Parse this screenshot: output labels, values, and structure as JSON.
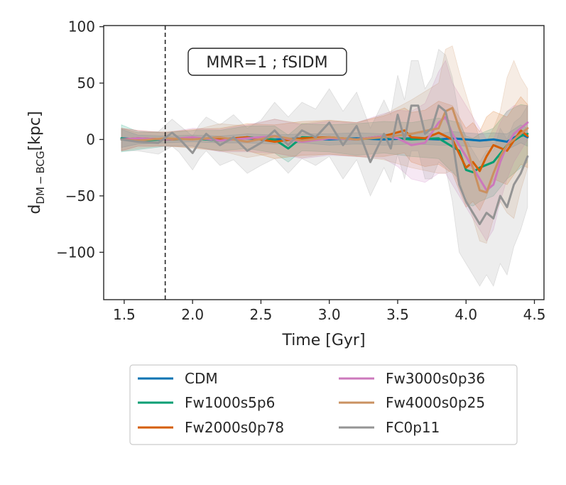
{
  "chart_data": {
    "type": "line",
    "xlabel": "Time [Gyr]",
    "ylabel_main": "d",
    "ylabel_sub": "DM − BCG",
    "ylabel_unit": "[kpc]",
    "annotation": "MMR=1 ; fSIDM",
    "xlim": [
      1.35,
      4.57
    ],
    "ylim": [
      -142,
      101
    ],
    "xticks": [
      1.5,
      2.0,
      2.5,
      3.0,
      3.5,
      4.0,
      4.5
    ],
    "xtick_labels": [
      "1.5",
      "2.0",
      "2.5",
      "3.0",
      "3.5",
      "4.0",
      "4.5"
    ],
    "yticks": [
      100,
      50,
      0,
      -50,
      -100
    ],
    "ytick_labels": [
      "100",
      "50",
      "0",
      "−50",
      "−100"
    ],
    "vline_x": 1.8,
    "legend_placement": "below plot, two columns",
    "series": [
      {
        "name": "CDM",
        "color": "#0173b2",
        "x": [
          1.48,
          1.6,
          1.8,
          2.0,
          2.2,
          2.4,
          2.6,
          2.8,
          3.0,
          3.2,
          3.4,
          3.6,
          3.8,
          3.9,
          4.0,
          4.1,
          4.2,
          4.3,
          4.4,
          4.45
        ],
        "y": [
          1,
          0,
          0,
          1,
          0,
          1,
          0,
          1,
          0,
          1,
          0,
          1,
          0,
          1,
          0,
          -1,
          0,
          -2,
          5,
          2
        ],
        "band": [
          8,
          4,
          3,
          3,
          3,
          4,
          4,
          4,
          5,
          5,
          5,
          5,
          5,
          6,
          6,
          6,
          6,
          7,
          8,
          8
        ]
      },
      {
        "name": "Fw1000s5p6",
        "color": "#029e73",
        "x": [
          1.48,
          1.6,
          1.8,
          2.0,
          2.2,
          2.4,
          2.6,
          2.7,
          2.8,
          3.0,
          3.2,
          3.4,
          3.6,
          3.8,
          3.95,
          4.0,
          4.05,
          4.1,
          4.2,
          4.3,
          4.4,
          4.45
        ],
        "y": [
          1,
          -1,
          0,
          1,
          -1,
          2,
          0,
          -8,
          2,
          1,
          0,
          2,
          0,
          1,
          -10,
          -27,
          -29,
          -25,
          -20,
          -5,
          3,
          5
        ],
        "band": [
          12,
          8,
          6,
          7,
          9,
          10,
          12,
          12,
          12,
          12,
          14,
          14,
          15,
          18,
          25,
          30,
          30,
          30,
          30,
          30,
          28,
          25
        ]
      },
      {
        "name": "Fw2000s0p78",
        "color": "#d55e00",
        "x": [
          1.48,
          1.6,
          1.8,
          2.0,
          2.2,
          2.4,
          2.6,
          2.8,
          3.0,
          3.2,
          3.4,
          3.55,
          3.6,
          3.7,
          3.8,
          3.9,
          4.0,
          4.05,
          4.1,
          4.15,
          4.2,
          4.3,
          4.4,
          4.45
        ],
        "y": [
          0,
          1,
          0,
          1,
          0,
          2,
          -2,
          1,
          2,
          0,
          3,
          8,
          2,
          1,
          6,
          0,
          -25,
          -20,
          -28,
          -15,
          -5,
          -10,
          8,
          3
        ],
        "band": [
          10,
          7,
          6,
          8,
          10,
          12,
          15,
          15,
          15,
          15,
          18,
          20,
          22,
          25,
          28,
          30,
          35,
          35,
          35,
          35,
          30,
          30,
          30,
          28
        ]
      },
      {
        "name": "Fw3000s0p36",
        "color": "#cc78bc",
        "x": [
          1.48,
          1.6,
          1.8,
          2.0,
          2.2,
          2.4,
          2.6,
          2.8,
          3.0,
          3.2,
          3.4,
          3.5,
          3.6,
          3.7,
          3.8,
          3.85,
          3.9,
          4.0,
          4.1,
          4.15,
          4.2,
          4.25,
          4.3,
          4.35,
          4.4,
          4.45
        ],
        "y": [
          0,
          1,
          0,
          2,
          -1,
          1,
          3,
          -2,
          1,
          0,
          3,
          1,
          -5,
          -3,
          15,
          20,
          5,
          -15,
          -35,
          -45,
          -40,
          -20,
          -5,
          5,
          10,
          15
        ],
        "band": [
          10,
          7,
          6,
          8,
          10,
          12,
          15,
          15,
          15,
          15,
          20,
          25,
          30,
          35,
          45,
          50,
          45,
          45,
          45,
          45,
          40,
          35,
          30,
          25,
          20,
          15
        ]
      },
      {
        "name": "Fw4000s0p25",
        "color": "#ca9161",
        "x": [
          1.48,
          1.6,
          1.8,
          2.0,
          2.2,
          2.4,
          2.6,
          2.8,
          3.0,
          3.2,
          3.4,
          3.6,
          3.8,
          3.85,
          3.9,
          3.95,
          4.0,
          4.05,
          4.1,
          4.15,
          4.2,
          4.25,
          4.3,
          4.35,
          4.4,
          4.45
        ],
        "y": [
          0,
          -1,
          1,
          0,
          2,
          -2,
          3,
          -1,
          2,
          0,
          2,
          5,
          10,
          25,
          28,
          10,
          -5,
          -25,
          -45,
          -47,
          -30,
          -15,
          -5,
          0,
          5,
          10
        ],
        "band": [
          10,
          7,
          6,
          8,
          12,
          14,
          15,
          15,
          15,
          15,
          20,
          30,
          40,
          55,
          55,
          50,
          45,
          45,
          45,
          45,
          40,
          40,
          60,
          70,
          50,
          35
        ]
      },
      {
        "name": "FC0p11",
        "color": "#949494",
        "x": [
          1.48,
          1.6,
          1.75,
          1.85,
          1.9,
          2.0,
          2.05,
          2.1,
          2.2,
          2.3,
          2.4,
          2.5,
          2.6,
          2.7,
          2.8,
          2.9,
          3.0,
          3.1,
          3.2,
          3.3,
          3.4,
          3.45,
          3.5,
          3.55,
          3.6,
          3.65,
          3.7,
          3.75,
          3.8,
          3.85,
          3.9,
          3.95,
          4.0,
          4.05,
          4.1,
          4.15,
          4.2,
          4.25,
          4.3,
          4.35,
          4.4,
          4.45
        ],
        "y": [
          0,
          -2,
          -3,
          6,
          1,
          -12,
          -2,
          5,
          -5,
          2,
          -10,
          -3,
          8,
          -5,
          8,
          2,
          15,
          -5,
          12,
          -20,
          5,
          -8,
          22,
          0,
          30,
          30,
          5,
          10,
          30,
          25,
          0,
          -40,
          -55,
          -65,
          -75,
          -65,
          -70,
          -50,
          -60,
          -40,
          -30,
          -15
        ],
        "band": [
          10,
          8,
          10,
          12,
          12,
          15,
          15,
          15,
          18,
          20,
          20,
          20,
          25,
          25,
          25,
          25,
          30,
          30,
          30,
          30,
          30,
          30,
          35,
          35,
          40,
          40,
          40,
          45,
          50,
          50,
          55,
          60,
          55,
          55,
          55,
          55,
          60,
          60,
          60,
          55,
          50,
          45
        ]
      }
    ]
  }
}
